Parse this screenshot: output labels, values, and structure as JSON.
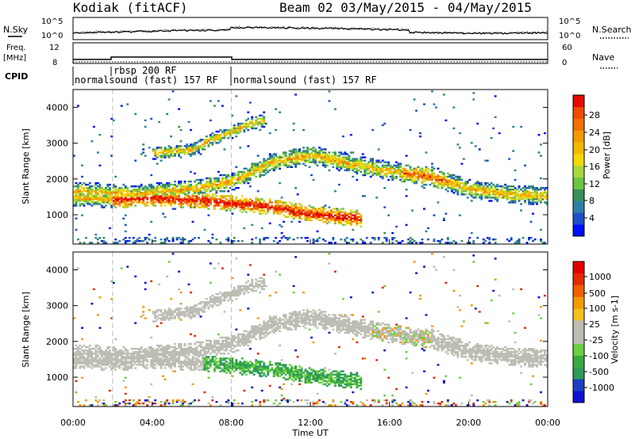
{
  "header": {
    "station": "Kodiak (fitACF)",
    "beam": "Beam 02 03/May/2015 - 04/May/2015"
  },
  "strip": {
    "nsky_label": "N.Sky",
    "nsky_ticks": [
      "10^5",
      "10^0"
    ],
    "nsearch_label": "N.Search",
    "nsearch_ticks": [
      "10^5",
      "10^0"
    ],
    "freq_label_line1": "Freq.",
    "freq_label_line2": "[MHz]",
    "freq_ticks": [
      "12",
      "8"
    ],
    "nave_label": "Nave",
    "nave_ticks": [
      "60",
      "0"
    ],
    "cpid_label": "CPID",
    "cpid_segments": [
      {
        "label": "rbsp 200 RF",
        "start_hour": 2.0,
        "end_hour": 8.0
      },
      {
        "label": "normalsound (fast) 157 RF",
        "start_hour": 0.0,
        "end_hour": 8.0
      },
      {
        "label": "normalsound (fast) 157 RF",
        "start_hour": 8.0,
        "end_hour": 24.0
      }
    ]
  },
  "chart_data": [
    {
      "type": "heatmap",
      "panel": "power",
      "ylabel": "Slant Range [km]",
      "xlabel": "Time UT",
      "ylim": [
        180,
        4500
      ],
      "xlim": [
        0,
        24
      ],
      "y_ticks": [
        "1000",
        "2000",
        "3000",
        "4000"
      ],
      "x_ticks": [
        "00:00",
        "04:00",
        "08:00",
        "12:00",
        "16:00",
        "20:00",
        "00:00"
      ],
      "colorbar": {
        "label": "Power [dB]",
        "ticks": [
          "4",
          "8",
          "12",
          "16",
          "20",
          "24",
          "28"
        ],
        "colors": [
          "#0010ff",
          "#1f4fc8",
          "#2e7fa6",
          "#3a8f5a",
          "#6cc43e",
          "#a8d840",
          "#f5d90a",
          "#f3b700",
          "#f39a00",
          "#f07000",
          "#ee4a00",
          "#e40a00"
        ]
      },
      "bands": [
        {
          "name": "1000-1800 km band",
          "points": [
            [
              0,
              1450
            ],
            [
              2,
              1400
            ],
            [
              4,
              1450
            ],
            [
              6,
              1400
            ],
            [
              8,
              1300
            ],
            [
              10,
              1200
            ],
            [
              12,
              1000
            ],
            [
              14,
              900
            ],
            [
              14.5,
              850
            ]
          ]
        },
        {
          "name": "main echo band",
          "points": [
            [
              0,
              1650
            ],
            [
              3,
              1550
            ],
            [
              6,
              1700
            ],
            [
              8,
              1900
            ],
            [
              10,
              2450
            ],
            [
              12,
              2650
            ],
            [
              14,
              2400
            ],
            [
              16,
              2200
            ],
            [
              18,
              2050
            ],
            [
              20,
              1700
            ],
            [
              22,
              1550
            ],
            [
              24,
              1500
            ]
          ]
        },
        {
          "name": "far range band",
          "points": [
            [
              4,
              2700
            ],
            [
              6,
              2800
            ],
            [
              7,
              3100
            ],
            [
              8,
              3300
            ],
            [
              9,
              3550
            ],
            [
              9.6,
              3600
            ]
          ]
        }
      ]
    },
    {
      "type": "heatmap",
      "panel": "velocity",
      "ylabel": "Slant Range [km]",
      "xlabel": "Time UT",
      "ylim": [
        180,
        4500
      ],
      "xlim": [
        0,
        24
      ],
      "y_ticks": [
        "1000",
        "2000",
        "3000",
        "4000"
      ],
      "x_ticks": [
        "00:00",
        "04:00",
        "08:00",
        "12:00",
        "16:00",
        "20:00",
        "00:00"
      ],
      "colorbar": {
        "label": "Velocity [m s-1]",
        "ticks": [
          "1000",
          "500",
          "100",
          "25",
          "-25",
          "-100",
          "-500",
          "-1000"
        ],
        "colors": [
          "#1010d0",
          "#2040c0",
          "#2e9a5a",
          "#3aaa40",
          "#6cd040",
          "#bdbdb4",
          "#bdbdb4",
          "#f3c020",
          "#f39a00",
          "#f06000",
          "#e42a00",
          "#e40000"
        ]
      }
    }
  ]
}
